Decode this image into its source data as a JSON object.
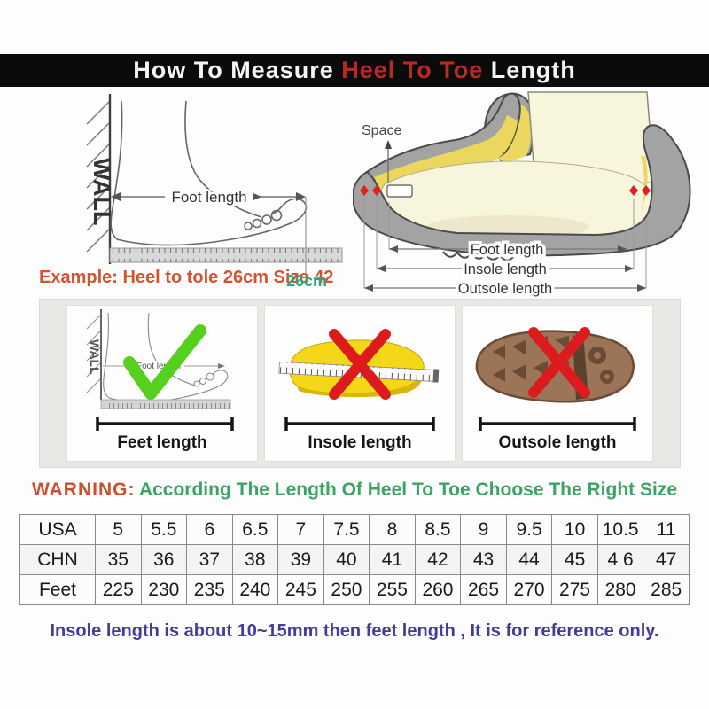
{
  "title": {
    "part1": "How To Measure ",
    "highlight": "Heel To Toe",
    "part2": " Length"
  },
  "wall_diagram": {
    "wall_label": "WALL",
    "foot_length_label": "Foot length",
    "example": "Example: Heel to tole 26cm Size 42",
    "measurement": "26cm"
  },
  "shoe_diagram": {
    "space_label": "Space",
    "foot_length_label": "Foot length",
    "insole_length_label": "Insole length",
    "outsole_length_label": "Outsole length"
  },
  "panels": [
    {
      "label": "Feet length",
      "mark": "check",
      "wall_label": "WALL",
      "foot_length_label": "Foot length"
    },
    {
      "label": "Insole length",
      "mark": "cross"
    },
    {
      "label": "Outsole length",
      "mark": "cross"
    }
  ],
  "warning": {
    "label": "WARNING:",
    "text": "According The Length Of Heel To Toe Choose The Right Size"
  },
  "size_table": {
    "rows": [
      {
        "label": "USA",
        "values": [
          "5",
          "5.5",
          "6",
          "6.5",
          "7",
          "7.5",
          "8",
          "8.5",
          "9",
          "9.5",
          "10",
          "10.5",
          "11"
        ]
      },
      {
        "label": "CHN",
        "values": [
          "35",
          "36",
          "37",
          "38",
          "39",
          "40",
          "41",
          "42",
          "43",
          "44",
          "45",
          "4 6",
          "47"
        ]
      },
      {
        "label": "Feet",
        "values": [
          "225",
          "230",
          "235",
          "240",
          "245",
          "250",
          "255",
          "260",
          "265",
          "270",
          "275",
          "280",
          "285"
        ]
      }
    ]
  },
  "footnote": "Insole length is about 10~15mm then feet length , It is for reference only.",
  "colors": {
    "title_highlight": "#b92b20",
    "example_red": "#d35430",
    "measurement_green": "#2fa37c",
    "warning_label_red": "#c9512e",
    "warning_text_green": "#3ba463",
    "footnote_blue": "#403d9c",
    "check_green": "#55d01f",
    "cross_red": "#dc1c1c",
    "insole_yellow": "#f2d518",
    "outsole_brown": "#9a7356",
    "shoe_gray": "#a3a3a3"
  }
}
